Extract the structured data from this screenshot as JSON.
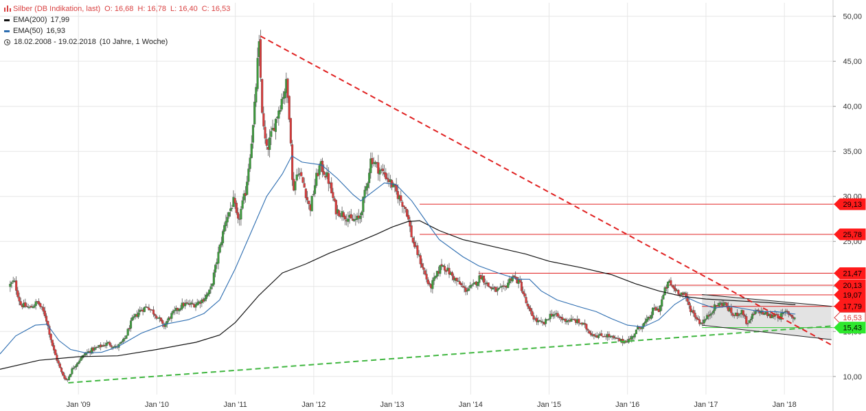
{
  "legend": {
    "title": "Silber (DB Indikation, last)",
    "ohlc": {
      "o": "O: 16,68",
      "h": "H: 16,78",
      "l": "L: 16,40",
      "c": "C: 16,53"
    },
    "ema200_label": "EMA(200)",
    "ema200_value": "17,99",
    "ema50_label": "EMA(50)",
    "ema50_value": "16,93",
    "period": "18.02.2008 - 19.02.2018",
    "period_note": "(10 Jahre, 1 Woche)"
  },
  "colors": {
    "up": "#3c9b3c",
    "down": "#d93b3b",
    "ema200": "#111111",
    "ema50": "#2b6cb0",
    "resistance": "#e02020",
    "support": "#2ecc2e",
    "grid": "#e6e6e6"
  },
  "chart_data": {
    "type": "candlestick",
    "title": "Silber (DB Indikation, last)",
    "interval": "1 Woche",
    "x_range": [
      "2008-02-18",
      "2018-02-19"
    ],
    "y_range": [
      8.0,
      51.5
    ],
    "y_ticks": [
      "10,00",
      "15,00",
      "20,00",
      "25,00",
      "30,00",
      "35,00",
      "40,00",
      "45,00",
      "50,00"
    ],
    "y_tick_values": [
      10,
      15,
      20,
      25,
      30,
      35,
      40,
      45,
      50
    ],
    "x_ticks": [
      "Jan '09",
      "Jan '10",
      "Jan '11",
      "Jan '12",
      "Jan '13",
      "Jan '14",
      "Jan '15",
      "Jan '16",
      "Jan '17",
      "Jan '18"
    ],
    "x_tick_values": [
      2009.0,
      2010.0,
      2011.0,
      2012.0,
      2013.0,
      2014.0,
      2015.0,
      2016.0,
      2017.0,
      2018.0
    ],
    "price_path": [
      [
        2008.13,
        20.0
      ],
      [
        2008.2,
        20.6
      ],
      [
        2008.28,
        18.0
      ],
      [
        2008.4,
        17.6
      ],
      [
        2008.5,
        18.3
      ],
      [
        2008.6,
        16.7
      ],
      [
        2008.7,
        13.0
      ],
      [
        2008.8,
        10.5
      ],
      [
        2008.87,
        9.5
      ],
      [
        2008.95,
        11.0
      ],
      [
        2009.1,
        12.5
      ],
      [
        2009.2,
        13.0
      ],
      [
        2009.4,
        13.7
      ],
      [
        2009.5,
        13.2
      ],
      [
        2009.6,
        14.0
      ],
      [
        2009.7,
        16.2
      ],
      [
        2009.8,
        17.3
      ],
      [
        2009.9,
        17.8
      ],
      [
        2010.05,
        16.4
      ],
      [
        2010.1,
        15.5
      ],
      [
        2010.2,
        16.8
      ],
      [
        2010.35,
        18.0
      ],
      [
        2010.5,
        18.0
      ],
      [
        2010.6,
        18.5
      ],
      [
        2010.7,
        19.5
      ],
      [
        2010.8,
        23.5
      ],
      [
        2010.9,
        27.5
      ],
      [
        2011.0,
        29.5
      ],
      [
        2011.05,
        27.0
      ],
      [
        2011.15,
        30.5
      ],
      [
        2011.25,
        38.0
      ],
      [
        2011.32,
        47.0
      ],
      [
        2011.37,
        38.0
      ],
      [
        2011.42,
        35.0
      ],
      [
        2011.5,
        37.5
      ],
      [
        2011.6,
        40.5
      ],
      [
        2011.67,
        42.5
      ],
      [
        2011.72,
        38.0
      ],
      [
        2011.75,
        30.5
      ],
      [
        2011.82,
        33.0
      ],
      [
        2011.9,
        31.0
      ],
      [
        2011.97,
        28.5
      ],
      [
        2012.05,
        32.0
      ],
      [
        2012.1,
        33.5
      ],
      [
        2012.2,
        32.0
      ],
      [
        2012.3,
        28.5
      ],
      [
        2012.4,
        28.0
      ],
      [
        2012.5,
        27.3
      ],
      [
        2012.6,
        27.5
      ],
      [
        2012.7,
        31.5
      ],
      [
        2012.75,
        34.3
      ],
      [
        2012.85,
        33.0
      ],
      [
        2012.92,
        32.5
      ],
      [
        2013.0,
        31.5
      ],
      [
        2013.1,
        30.0
      ],
      [
        2013.2,
        28.5
      ],
      [
        2013.28,
        25.0
      ],
      [
        2013.35,
        23.5
      ],
      [
        2013.45,
        21.0
      ],
      [
        2013.5,
        19.8
      ],
      [
        2013.6,
        21.5
      ],
      [
        2013.65,
        22.5
      ],
      [
        2013.75,
        21.5
      ],
      [
        2013.85,
        20.5
      ],
      [
        2013.95,
        19.6
      ],
      [
        2014.05,
        20.0
      ],
      [
        2014.15,
        21.2
      ],
      [
        2014.25,
        20.0
      ],
      [
        2014.35,
        19.5
      ],
      [
        2014.45,
        19.8
      ],
      [
        2014.55,
        21.2
      ],
      [
        2014.65,
        20.3
      ],
      [
        2014.75,
        17.5
      ],
      [
        2014.85,
        16.2
      ],
      [
        2014.95,
        15.8
      ],
      [
        2015.05,
        17.0
      ],
      [
        2015.1,
        16.8
      ],
      [
        2015.2,
        16.3
      ],
      [
        2015.35,
        16.2
      ],
      [
        2015.45,
        15.8
      ],
      [
        2015.55,
        14.8
      ],
      [
        2015.65,
        14.5
      ],
      [
        2015.75,
        14.6
      ],
      [
        2015.85,
        14.2
      ],
      [
        2015.95,
        13.9
      ],
      [
        2016.05,
        14.1
      ],
      [
        2016.15,
        15.3
      ],
      [
        2016.25,
        16.0
      ],
      [
        2016.3,
        16.5
      ],
      [
        2016.35,
        17.5
      ],
      [
        2016.42,
        17.4
      ],
      [
        2016.5,
        19.7
      ],
      [
        2016.55,
        20.5
      ],
      [
        2016.6,
        19.8
      ],
      [
        2016.7,
        19.3
      ],
      [
        2016.75,
        19.0
      ],
      [
        2016.82,
        17.5
      ],
      [
        2016.9,
        16.5
      ],
      [
        2016.95,
        15.9
      ],
      [
        2017.02,
        16.4
      ],
      [
        2017.1,
        17.4
      ],
      [
        2017.15,
        17.9
      ],
      [
        2017.25,
        18.2
      ],
      [
        2017.32,
        17.3
      ],
      [
        2017.38,
        16.7
      ],
      [
        2017.45,
        17.2
      ],
      [
        2017.5,
        17.0
      ],
      [
        2017.55,
        15.6
      ],
      [
        2017.6,
        16.6
      ],
      [
        2017.65,
        17.1
      ],
      [
        2017.7,
        17.3
      ],
      [
        2017.75,
        17.0
      ],
      [
        2017.8,
        16.9
      ],
      [
        2017.85,
        16.6
      ],
      [
        2017.9,
        17.0
      ],
      [
        2017.95,
        16.6
      ],
      [
        2018.05,
        17.2
      ],
      [
        2018.1,
        16.8
      ],
      [
        2018.14,
        16.53
      ]
    ],
    "ema200_path": [
      [
        2008.0,
        10.8
      ],
      [
        2008.5,
        11.8
      ],
      [
        2009.0,
        12.2
      ],
      [
        2009.5,
        12.3
      ],
      [
        2010.0,
        13.0
      ],
      [
        2010.5,
        13.8
      ],
      [
        2010.8,
        14.6
      ],
      [
        2011.0,
        16.0
      ],
      [
        2011.3,
        19.0
      ],
      [
        2011.6,
        21.5
      ],
      [
        2011.9,
        22.5
      ],
      [
        2012.2,
        23.7
      ],
      [
        2012.5,
        24.7
      ],
      [
        2012.8,
        25.8
      ],
      [
        2013.0,
        26.6
      ],
      [
        2013.2,
        27.2
      ],
      [
        2013.35,
        27.3
      ],
      [
        2013.6,
        26.2
      ],
      [
        2013.9,
        25.2
      ],
      [
        2014.3,
        24.4
      ],
      [
        2014.7,
        23.6
      ],
      [
        2015.0,
        22.8
      ],
      [
        2015.4,
        22.1
      ],
      [
        2015.8,
        21.3
      ],
      [
        2016.1,
        20.3
      ],
      [
        2016.4,
        19.5
      ],
      [
        2016.7,
        18.9
      ],
      [
        2017.0,
        18.6
      ],
      [
        2017.4,
        18.4
      ],
      [
        2017.8,
        18.2
      ],
      [
        2018.1,
        18.0
      ],
      [
        2018.14,
        17.99
      ]
    ],
    "ema50_path": [
      [
        2008.0,
        12.5
      ],
      [
        2008.2,
        14.5
      ],
      [
        2008.45,
        15.7
      ],
      [
        2008.6,
        15.8
      ],
      [
        2008.75,
        14.0
      ],
      [
        2008.9,
        13.0
      ],
      [
        2009.1,
        12.6
      ],
      [
        2009.3,
        12.7
      ],
      [
        2009.5,
        13.3
      ],
      [
        2009.8,
        14.8
      ],
      [
        2010.1,
        15.8
      ],
      [
        2010.4,
        16.3
      ],
      [
        2010.6,
        17.0
      ],
      [
        2010.8,
        18.5
      ],
      [
        2011.0,
        22.0
      ],
      [
        2011.2,
        26.0
      ],
      [
        2011.4,
        30.0
      ],
      [
        2011.6,
        32.5
      ],
      [
        2011.72,
        34.5
      ],
      [
        2011.85,
        33.8
      ],
      [
        2012.1,
        33.5
      ],
      [
        2012.3,
        32.0
      ],
      [
        2012.5,
        30.2
      ],
      [
        2012.6,
        29.5
      ],
      [
        2012.75,
        30.5
      ],
      [
        2012.9,
        31.5
      ],
      [
        2013.05,
        31.3
      ],
      [
        2013.25,
        29.5
      ],
      [
        2013.45,
        27.0
      ],
      [
        2013.6,
        25.2
      ],
      [
        2013.9,
        23.3
      ],
      [
        2014.1,
        22.3
      ],
      [
        2014.35,
        21.5
      ],
      [
        2014.6,
        20.8
      ],
      [
        2014.75,
        20.8
      ],
      [
        2014.9,
        19.5
      ],
      [
        2015.1,
        18.5
      ],
      [
        2015.4,
        17.7
      ],
      [
        2015.6,
        17.2
      ],
      [
        2015.8,
        16.4
      ],
      [
        2016.0,
        15.7
      ],
      [
        2016.2,
        15.5
      ],
      [
        2016.4,
        16.3
      ],
      [
        2016.6,
        18.0
      ],
      [
        2016.75,
        18.8
      ],
      [
        2016.9,
        18.2
      ],
      [
        2017.1,
        17.6
      ],
      [
        2017.3,
        17.8
      ],
      [
        2017.5,
        17.5
      ],
      [
        2017.7,
        17.2
      ],
      [
        2017.9,
        17.2
      ],
      [
        2018.14,
        16.93
      ]
    ],
    "price_markers": [
      {
        "label": "29,13",
        "value": 29.13,
        "color": "red"
      },
      {
        "label": "25,78",
        "value": 25.78,
        "color": "red"
      },
      {
        "label": "21,47",
        "value": 21.47,
        "color": "red"
      },
      {
        "label": "20,13",
        "value": 20.13,
        "color": "red"
      },
      {
        "label": "19,07",
        "value": 19.07,
        "color": "red"
      },
      {
        "label": "17,79",
        "value": 17.79,
        "color": "red"
      },
      {
        "label": "16,53",
        "value": 16.53,
        "color": "white"
      },
      {
        "label": "15,43",
        "value": 15.43,
        "color": "green"
      }
    ],
    "horizontal_levels": [
      {
        "value": 29.13,
        "from": 2013.35,
        "color": "red"
      },
      {
        "value": 25.78,
        "from": 2013.35,
        "color": "red"
      },
      {
        "value": 21.47,
        "from": 2014.1,
        "color": "red"
      },
      {
        "value": 20.13,
        "from": 2016.5,
        "color": "red"
      },
      {
        "value": 19.07,
        "from": 2016.6,
        "color": "red"
      },
      {
        "value": 17.79,
        "from": 2016.95,
        "color": "red"
      },
      {
        "value": 15.43,
        "from": 2016.95,
        "color": "green"
      }
    ],
    "trendlines": [
      {
        "name": "Abwärtstrend",
        "style": "dashed",
        "color": "red",
        "from": [
          2011.32,
          47.8
        ],
        "to": [
          2018.6,
          13.5
        ]
      },
      {
        "name": "Aufwärtstrend",
        "style": "dashed",
        "color": "green",
        "from": [
          2008.87,
          9.3
        ],
        "to": [
          2018.6,
          15.6
        ]
      },
      {
        "name": "Kanal oben",
        "style": "solid",
        "color": "black",
        "from": [
          2016.95,
          19.1
        ],
        "to": [
          2018.6,
          17.8
        ]
      },
      {
        "name": "Kanal unten",
        "style": "solid",
        "color": "black",
        "from": [
          2016.95,
          15.7
        ],
        "to": [
          2018.6,
          14.1
        ]
      }
    ]
  }
}
